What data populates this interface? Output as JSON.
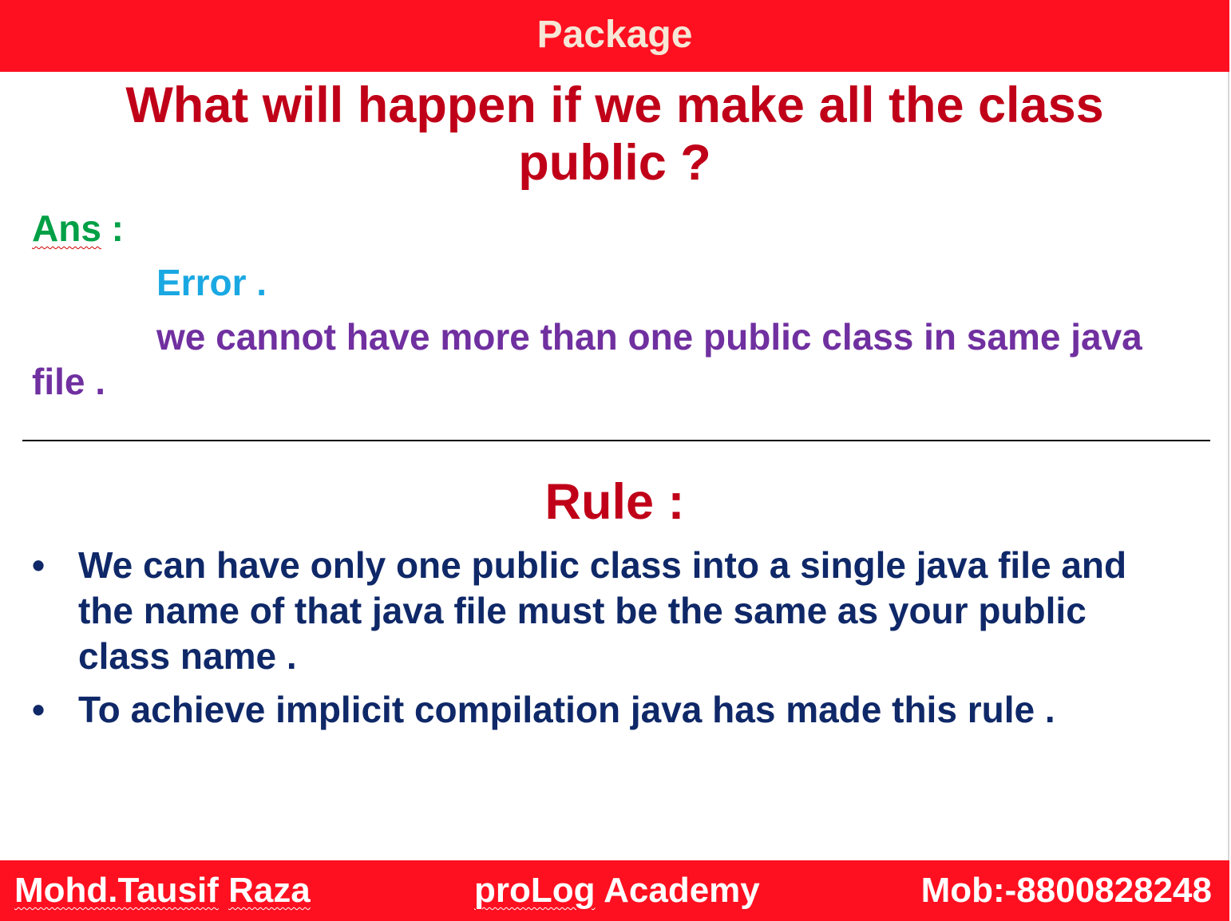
{
  "header": {
    "title": "Package"
  },
  "question": "What will happen if we make all the class public ?",
  "answer": {
    "label": "Ans",
    "label_suffix": " :",
    "error": "Error .",
    "explanation": "we cannot have more than one public class in same java file ."
  },
  "rule": {
    "heading": "Rule :",
    "bullet_symbol": "•",
    "items": [
      "We can have only one public class into a single java file and the name of that java file must be the same as your public class name .",
      "To achieve implicit compilation java has made this rule ."
    ]
  },
  "footer": {
    "author_first": "Mohd.Tausif",
    "author_last": "Raza",
    "academy_first": "proLog",
    "academy_last": "Academy",
    "mobile": "Mob:-8800828248"
  },
  "colors": {
    "bar_red": "#fe1020",
    "heading_red": "#c00018",
    "answer_green": "#00a046",
    "error_blue": "#1aa8e2",
    "explanation_purple": "#7030a0",
    "rule_navy": "#0f2868"
  }
}
